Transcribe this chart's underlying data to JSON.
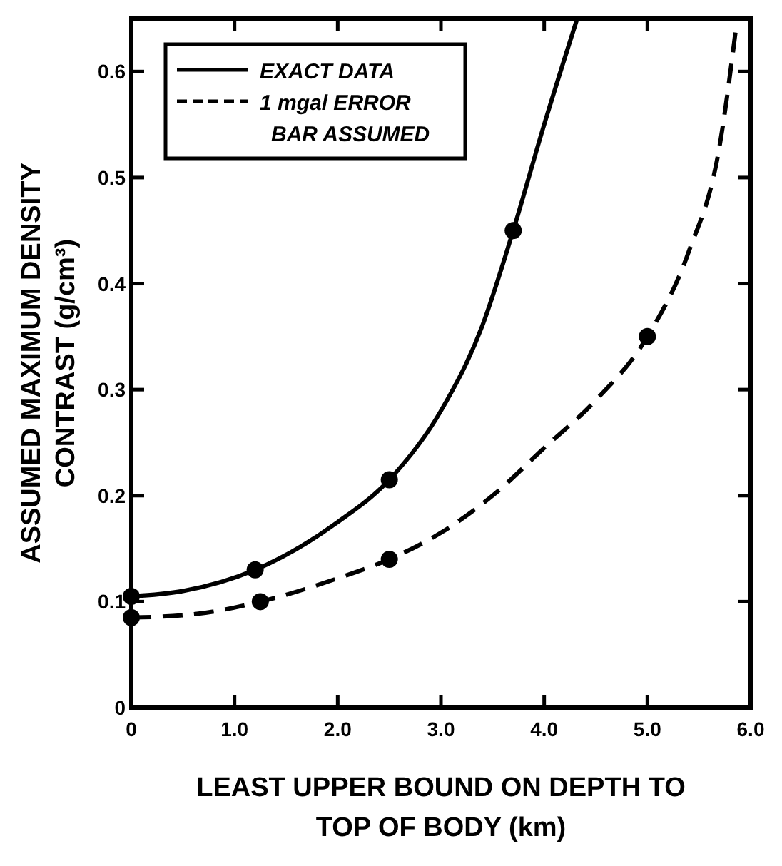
{
  "chart_data": {
    "type": "line",
    "xlabel": "LEAST UPPER BOUND ON DEPTH TO TOP OF BODY (km)",
    "ylabel": "ASSUMED MAXIMUM DENSITY CONTRAST (g/cm³)",
    "xlim": [
      0,
      6.0
    ],
    "ylim": [
      0,
      0.65
    ],
    "xticks": [
      0,
      {
        "value": 1,
        "label": "1.0"
      },
      {
        "value": 2,
        "label": "2.0"
      },
      {
        "value": 3,
        "label": "3.0"
      },
      {
        "value": 4,
        "label": "4.0"
      },
      {
        "value": 5,
        "label": "5.0"
      },
      {
        "value": 6,
        "label": "6.0"
      }
    ],
    "yticks": [
      0,
      0.1,
      0.2,
      0.3,
      0.4,
      0.5,
      0.6
    ],
    "grid": false,
    "legend": "top left",
    "series": [
      {
        "name": "EXACT DATA",
        "color": "#000000",
        "marker": "none",
        "line_style": "solid",
        "x": [
          0,
          0.5,
          1.2,
          2.0,
          2.5,
          3.0,
          3.4,
          3.7,
          4.0,
          4.32
        ],
        "values": [
          0.105,
          0.11,
          0.13,
          0.175,
          0.215,
          0.28,
          0.36,
          0.45,
          0.55,
          0.65
        ]
      },
      {
        "name": "1 mgal ERROR BAR ASSUMED",
        "color": "#000000",
        "marker": "none",
        "line_style": "dashed",
        "x": [
          0,
          0.6,
          1.25,
          2.0,
          2.5,
          3.0,
          3.5,
          4.0,
          4.5,
          5.0,
          5.4,
          5.7,
          5.87
        ],
        "values": [
          0.085,
          0.088,
          0.1,
          0.122,
          0.14,
          0.165,
          0.2,
          0.245,
          0.29,
          0.35,
          0.43,
          0.53,
          0.65
        ]
      },
      {
        "type": "scatter",
        "color": "#000000",
        "marker": "circle",
        "x": [
          0,
          1.2,
          2.5,
          3.7
        ],
        "values": [
          0.105,
          0.13,
          0.215,
          0.45
        ]
      },
      {
        "type": "scatter",
        "color": "#000000",
        "marker": "circle",
        "x": [
          0,
          1.25,
          2.5,
          5.0
        ],
        "values": [
          0.085,
          0.1,
          0.14,
          0.35
        ]
      }
    ]
  }
}
